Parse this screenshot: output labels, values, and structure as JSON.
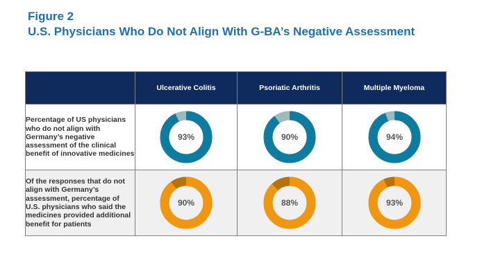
{
  "figure_label": "Figure 2",
  "title": "U.S. Physicians Who Do Not Align With G-BA’s Negative Assessment",
  "columns": [
    "Ulcerative Colitis",
    "Psoriatic Arthritis",
    "Multiple Myeloma"
  ],
  "colors": {
    "header_bg": "#0f2a5c",
    "title": "#1f6fb2",
    "row1_fill": "#0e7ca0",
    "row1_remainder": "#9fb9bf",
    "row2_fill": "#f0960f",
    "row2_remainder": "#b5730a"
  },
  "chart_data": {
    "type": "table",
    "columns": [
      "Ulcerative Colitis",
      "Psoriatic Arthritis",
      "Multiple Myeloma"
    ],
    "rows": [
      {
        "label": "Percentage of US physicians who do not align with Germany’s negative assessment of the clinical benefit of innovative medicines",
        "values": [
          93,
          90,
          94
        ],
        "labels": [
          "93%",
          "90%",
          "94%"
        ]
      },
      {
        "label": "Of the responses that do not align with Germany’s assessment, percentage of U.S. physicians who said the medicines provided additional benefit for patients",
        "values": [
          90,
          88,
          93
        ],
        "labels": [
          "90%",
          "88%",
          "93%"
        ]
      }
    ]
  }
}
